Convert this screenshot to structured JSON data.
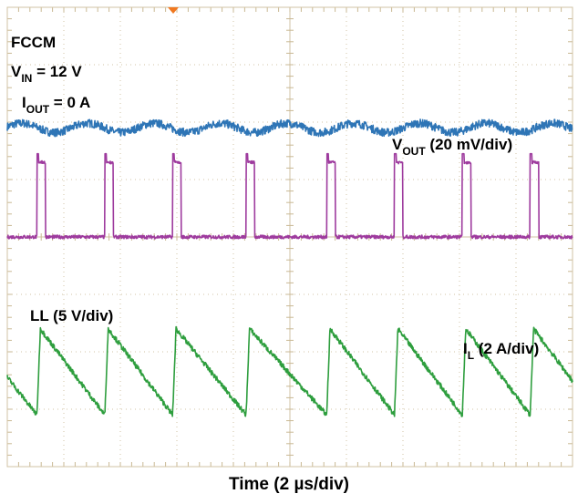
{
  "chart_data": {
    "type": "line",
    "title": "",
    "xlabel": "Time (2 µs/div)",
    "ylabel": "",
    "grid": true,
    "x_divisions": 10,
    "y_divisions": 8,
    "x_unit_per_div": "2 µs",
    "conditions": {
      "mode": "FCCM",
      "vin_label": "V",
      "vin_sub": "IN",
      "vin_value": " = 12 V",
      "iout_label": "I",
      "iout_sub": "OUT",
      "iout_value": " = 0 A"
    },
    "series": [
      {
        "name": "V_OUT",
        "label_main": "V",
        "label_sub": "OUT",
        "label_rest": " (20 mV/div)",
        "color": "#2e75b6",
        "kind": "ripple",
        "level_div": 5.9,
        "switching_period_us": 2.35
      },
      {
        "name": "LL",
        "label_main": "LL (5 V/div)",
        "label_sub": "",
        "label_rest": "",
        "color": "#9e3b9e",
        "kind": "pulse",
        "low_div": 4.0,
        "high_div": 5.45,
        "pulse_starts_us": [
          1.05,
          3.45,
          5.85,
          8.45,
          11.3,
          13.7,
          16.1,
          18.5
        ],
        "pulse_width_us": 0.3
      },
      {
        "name": "I_L",
        "label_main": "I",
        "label_sub": "L",
        "label_rest": " (2 A/div)",
        "color": "#2e9e3e",
        "kind": "sawtooth",
        "low_div": 0.9,
        "high_div": 2.4,
        "rise_starts_us": [
          1.05,
          3.45,
          5.85,
          8.45,
          11.3,
          13.7,
          16.1,
          18.5
        ]
      }
    ]
  }
}
